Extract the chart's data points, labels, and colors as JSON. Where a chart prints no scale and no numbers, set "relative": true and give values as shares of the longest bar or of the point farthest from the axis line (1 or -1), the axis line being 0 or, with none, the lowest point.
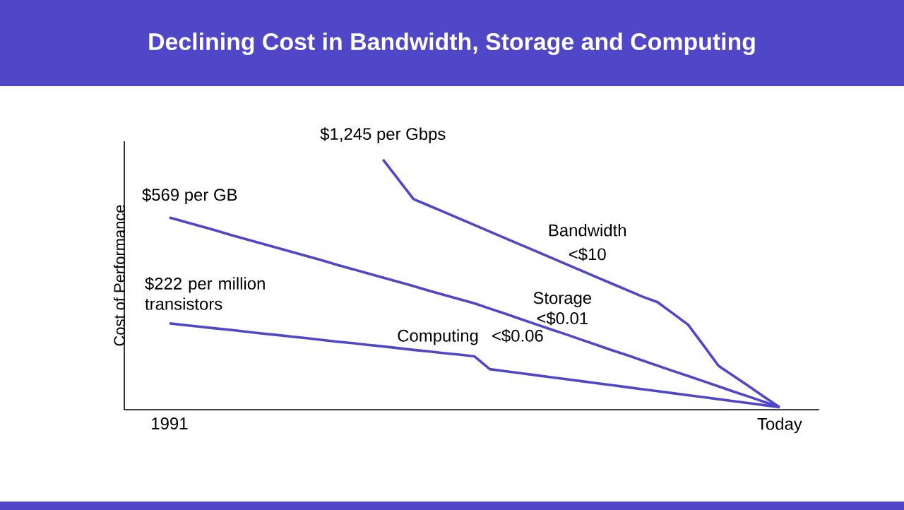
{
  "chart_data": {
    "type": "line",
    "title": "Declining Cost in Bandwidth, Storage and Computing",
    "ylabel": "Cost of Performance",
    "relative": true,
    "marker": "none",
    "line_style": "solid",
    "categories": [
      "1991",
      null,
      null,
      null,
      null,
      null,
      null,
      null,
      null,
      null,
      null,
      null,
      null,
      null,
      null,
      null,
      null,
      null,
      null,
      null,
      null,
      null,
      null,
      null,
      null,
      null,
      null,
      null,
      null,
      null,
      null,
      null,
      null,
      null,
      null,
      null,
      null,
      null,
      null,
      null,
      "Today"
    ],
    "series": [
      {
        "name": "Bandwidth",
        "color": "#5046c8",
        "values": [
          null,
          null,
          null,
          null,
          null,
          null,
          null,
          null,
          null,
          null,
          null,
          null,
          null,
          null,
          1.0,
          0.921,
          0.842,
          0.816,
          0.79,
          0.764,
          0.738,
          0.712,
          0.686,
          0.66,
          0.634,
          0.608,
          0.582,
          0.556,
          0.53,
          0.504,
          0.478,
          0.452,
          0.43,
          0.385,
          0.34,
          0.258,
          0.175,
          0.134,
          0.093,
          0.051,
          0.01
        ]
      },
      {
        "name": "Storage",
        "color": "#5046c8",
        "values": [
          0.768,
          0.751,
          0.734,
          0.717,
          0.699,
          0.682,
          0.665,
          0.648,
          0.631,
          0.614,
          0.597,
          0.579,
          0.562,
          0.545,
          0.528,
          0.511,
          0.494,
          0.476,
          0.459,
          0.442,
          0.425,
          0.404,
          0.384,
          0.363,
          0.342,
          0.321,
          0.301,
          0.28,
          0.259,
          0.238,
          0.218,
          0.197,
          0.176,
          0.155,
          0.135,
          0.114,
          0.093,
          0.072,
          0.052,
          0.031,
          0.01
        ]
      },
      {
        "name": "Computing",
        "color": "#5046c8",
        "values": [
          0.345,
          0.338,
          0.332,
          0.325,
          0.319,
          0.312,
          0.305,
          0.299,
          0.292,
          0.286,
          0.279,
          0.272,
          0.266,
          0.259,
          0.253,
          0.246,
          0.239,
          0.233,
          0.226,
          0.22,
          0.213,
          0.162,
          0.154,
          0.146,
          0.138,
          0.13,
          0.122,
          0.114,
          0.106,
          0.098,
          0.09,
          0.082,
          0.074,
          0.066,
          0.058,
          0.05,
          0.042,
          0.034,
          0.026,
          0.018,
          0.01
        ]
      }
    ],
    "annotations": [
      "$1,245 per Gbps",
      "$569 per GB",
      "$222 per million transistors",
      "<$10",
      "<$0.01",
      "<$0.06"
    ]
  }
}
